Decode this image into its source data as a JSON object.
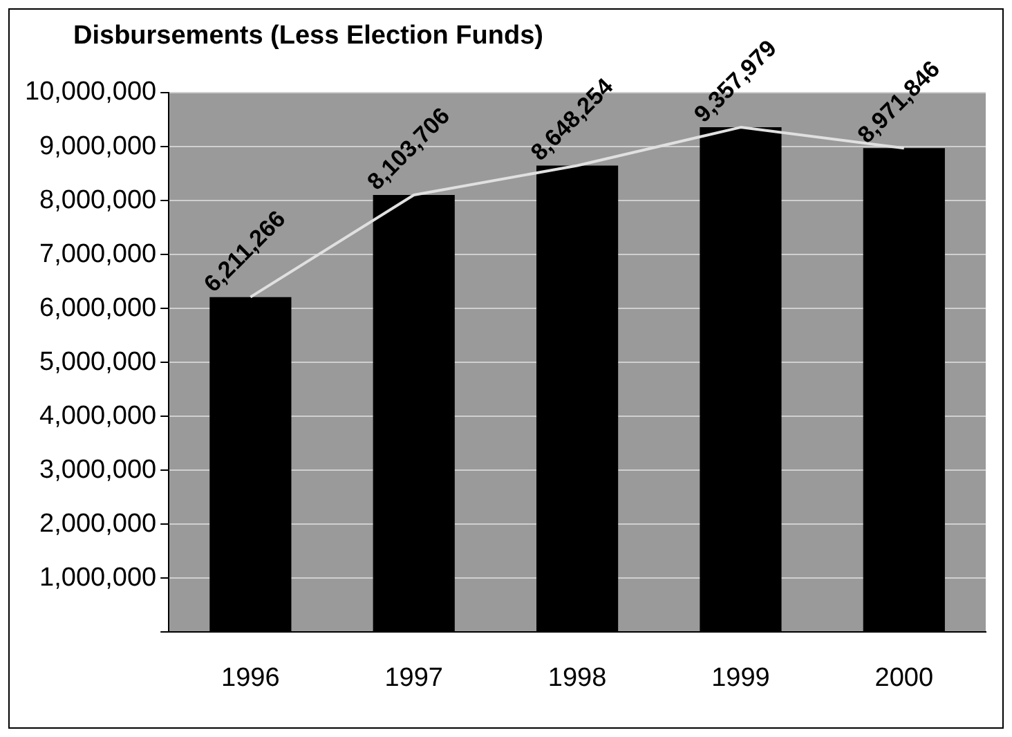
{
  "chart_data": {
    "type": "bar",
    "title": "Disbursements (Less Election Funds)",
    "categories": [
      "1996",
      "1997",
      "1998",
      "1999",
      "2000"
    ],
    "series": [
      {
        "color": "#000000",
        "values": [
          6211266,
          8103706,
          8648254,
          9357979,
          8971846
        ],
        "value_labels": [
          "6,211,266",
          "8,103,706",
          "8,648,254",
          "9,357,979",
          "8,971,846"
        ]
      },
      {
        "type": "line",
        "color": "#e0e0e0",
        "values": [
          6211266,
          8103706,
          8648254,
          9357979,
          8971846
        ]
      }
    ],
    "ylim": [
      0,
      10000000
    ],
    "yticks": [
      {
        "value": 0,
        "label": null
      },
      {
        "value": 1000000,
        "label": "1,000,000"
      },
      {
        "value": 2000000,
        "label": "2,000,000"
      },
      {
        "value": 3000000,
        "label": "3,000,000"
      },
      {
        "value": 4000000,
        "label": "4,000,000"
      },
      {
        "value": 5000000,
        "label": "5,000,000"
      },
      {
        "value": 6000000,
        "label": "6,000,000"
      },
      {
        "value": 7000000,
        "label": "7,000,000"
      },
      {
        "value": 8000000,
        "label": "8,000,000"
      },
      {
        "value": 9000000,
        "label": "9,000,000"
      },
      {
        "value": 10000000,
        "label": "10,000,000"
      }
    ],
    "grid": "y",
    "legend": false,
    "marker": "none"
  }
}
